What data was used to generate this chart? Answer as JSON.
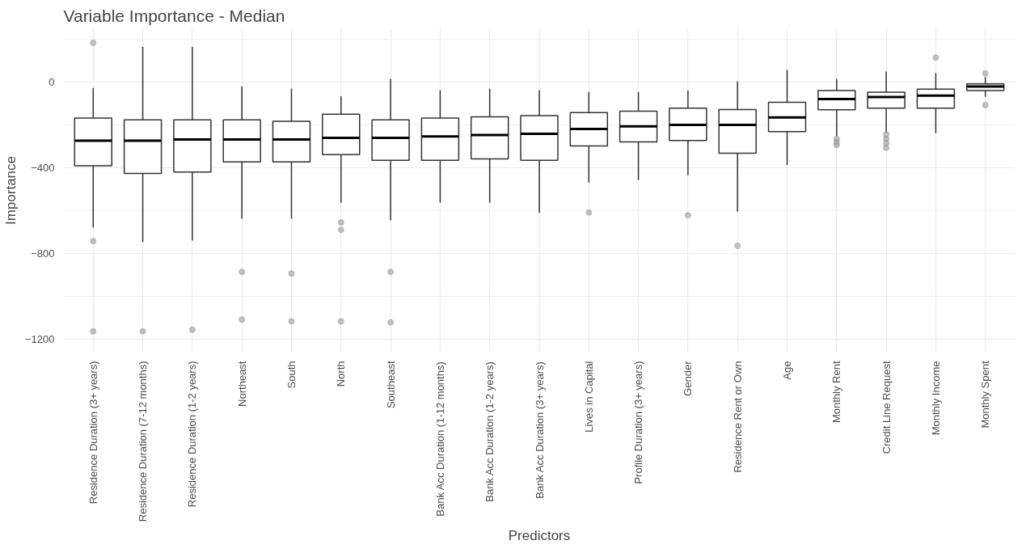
{
  "chart_data": {
    "type": "box",
    "title": "Variable Importance - Median",
    "xlabel": "Predictors",
    "ylabel": "Importance",
    "categories": [
      "Residence Duration (3+ years)",
      "Residence Duration (7-12 months)",
      "Residence Duration (1-2 years)",
      "Northeast",
      "South",
      "North",
      "Southeast",
      "Bank Acc Duration (1-12 months)",
      "Bank Acc Duration (1-2 years)",
      "Bank Acc Duration (3+ years)",
      "Lives in Capital",
      "Profile Duration (3+ years)",
      "Gender",
      "Residence Rent or Own",
      "Age",
      "Monthly Rent",
      "Credit Line Request",
      "Monthly Income",
      "Monthly Spent"
    ],
    "boxes": [
      {
        "low": -680,
        "q1": -391,
        "median": -274,
        "q3": -168,
        "high": -27,
        "outliers": [
          184,
          -743,
          -1165
        ]
      },
      {
        "low": -747,
        "q1": -427,
        "median": -274,
        "q3": -176,
        "high": 165,
        "outliers": [
          -1165
        ]
      },
      {
        "low": -740,
        "q1": -420,
        "median": -268,
        "q3": -176,
        "high": 165,
        "outliers": [
          -1157
        ]
      },
      {
        "low": -638,
        "q1": -373,
        "median": -268,
        "q3": -176,
        "high": -19,
        "outliers": [
          -887,
          -1110
        ]
      },
      {
        "low": -638,
        "q1": -373,
        "median": -268,
        "q3": -183,
        "high": -31,
        "outliers": [
          -894,
          -1118
        ]
      },
      {
        "low": -564,
        "q1": -339,
        "median": -260,
        "q3": -150,
        "high": -66,
        "outliers": [
          -655,
          -690,
          -1118
        ]
      },
      {
        "low": -646,
        "q1": -365,
        "median": -260,
        "q3": -176,
        "high": 16,
        "outliers": [
          -887,
          -1123
        ]
      },
      {
        "low": -564,
        "q1": -365,
        "median": -254,
        "q3": -168,
        "high": -38
      },
      {
        "low": -564,
        "q1": -359,
        "median": -247,
        "q3": -162,
        "high": -31
      },
      {
        "low": -611,
        "q1": -365,
        "median": -241,
        "q3": -156,
        "high": -38
      },
      {
        "low": -469,
        "q1": -298,
        "median": -219,
        "q3": -142,
        "high": -46,
        "outliers": [
          -609
        ]
      },
      {
        "low": -457,
        "q1": -279,
        "median": -206,
        "q3": -136,
        "high": -46
      },
      {
        "low": -435,
        "q1": -273,
        "median": -200,
        "q3": -121,
        "high": -38,
        "outliers": [
          -622
        ]
      },
      {
        "low": -605,
        "q1": -332,
        "median": -200,
        "q3": -128,
        "high": 3,
        "outliers": [
          -765
        ]
      },
      {
        "low": -387,
        "q1": -231,
        "median": -165,
        "q3": -94,
        "high": 57
      },
      {
        "low": -252,
        "q1": -129,
        "median": -79,
        "q3": -39,
        "high": 16,
        "outliers": [
          -265,
          -280,
          -294
        ]
      },
      {
        "low": -236,
        "q1": -121,
        "median": -69,
        "q3": -47,
        "high": 50,
        "outliers": [
          -244,
          -265,
          -285,
          -307
        ]
      },
      {
        "low": -239,
        "q1": -121,
        "median": -63,
        "q3": -33,
        "high": 43,
        "outliers": [
          115
        ]
      },
      {
        "low": -68,
        "q1": -39,
        "median": -20,
        "q3": -8,
        "high": 24,
        "outliers": [
          41,
          -107
        ]
      }
    ],
    "ylim": [
      -1262,
      250
    ],
    "yticks": [
      0,
      -400,
      -800,
      -1200
    ],
    "grid": true
  }
}
